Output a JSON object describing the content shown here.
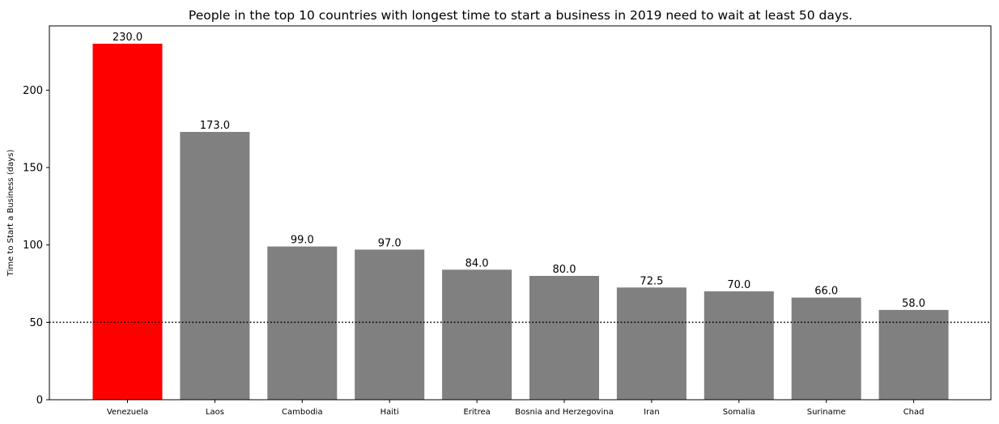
{
  "chart_data": {
    "type": "bar",
    "title": "People in the top 10 countries with longest time to start a business in 2019 need to wait at least 50 days.",
    "xlabel": "",
    "ylabel": "Time to Start a Business (days)",
    "categories": [
      "Venezuela",
      "Laos",
      "Cambodia",
      "Haiti",
      "Eritrea",
      "Bosnia and Herzegovina",
      "Iran",
      "Somalia",
      "Suriname",
      "Chad"
    ],
    "values": [
      230.0,
      173.0,
      99.0,
      97.0,
      84.0,
      80.0,
      72.5,
      70.0,
      66.0,
      58.0
    ],
    "value_labels": [
      "230.0",
      "173.0",
      "99.0",
      "97.0",
      "84.0",
      "80.0",
      "72.5",
      "70.0",
      "66.0",
      "58.0"
    ],
    "bar_colors": [
      "#ff0000",
      "#808080",
      "#808080",
      "#808080",
      "#808080",
      "#808080",
      "#808080",
      "#808080",
      "#808080",
      "#808080"
    ],
    "ylim": [
      0,
      241.5
    ],
    "yticks": [
      0,
      50,
      100,
      150,
      200
    ],
    "ytick_labels": [
      "0",
      "50",
      "100",
      "150",
      "200"
    ],
    "reference_line": {
      "y": 50,
      "style": "dotted",
      "color": "#000000"
    },
    "grid": false,
    "legend": "none"
  }
}
